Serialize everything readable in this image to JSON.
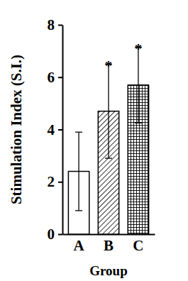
{
  "chart_data": {
    "type": "bar",
    "y_label": "Stimulation Index (S.I.)",
    "x_label": "Group",
    "categories": [
      "A",
      "B",
      "C"
    ],
    "values": [
      2.4,
      4.7,
      5.7
    ],
    "errors": [
      1.5,
      1.8,
      1.45
    ],
    "annotations": [
      null,
      "*",
      "*"
    ],
    "color": "#000000",
    "ylim": [
      0,
      8
    ],
    "yticks": [
      0,
      2,
      4,
      6,
      8
    ],
    "grid": false
  }
}
